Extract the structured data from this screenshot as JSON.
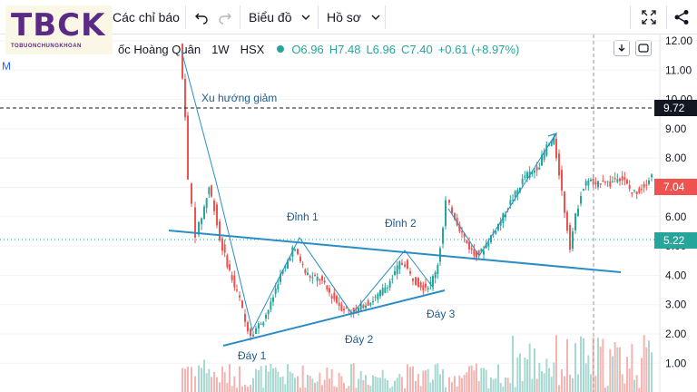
{
  "toolbar": {
    "indicators_label": "Các chỉ báo",
    "chart_label": "Biểu đồ",
    "profile_label": "Hồ sơ"
  },
  "logo": {
    "main": "TBCK",
    "sub": "TOBUONCHUNGKHOAN"
  },
  "legend": {
    "name": "ốc Hoàng Quân",
    "interval": "1W",
    "exchange": "HSX",
    "open": "O6.96",
    "high": "H7.48",
    "low": "L6.96",
    "close": "C7.40",
    "change": "+0.61 (+8.97%)"
  },
  "left_fragment": "M",
  "price_axis": {
    "ticks": [
      "12.00",
      "11.00",
      "10.00",
      "9.00",
      "8.00",
      "7.00",
      "6.00",
      "5.00",
      "4.00",
      "3.00",
      "2.00",
      "1.00"
    ],
    "crosshair_label": "9.72",
    "last_price_label": "7.04",
    "last_price_color": "#ef5350",
    "level_label": "5.22",
    "level_color": "#26a69a"
  },
  "annotations": {
    "downtrend": "Xu hướng giảm",
    "peak1": "Đỉnh 1",
    "peak2": "Đỉnh 2",
    "trough1": "Đáy 1",
    "trough2": "Đáy 2",
    "trough3": "Đáy 3"
  },
  "colors": {
    "up": "#26a69a",
    "down": "#ef5350",
    "line": "#2a8ec4"
  },
  "icons": [
    "undo-icon",
    "redo-icon",
    "chevron-down-icon",
    "fullscreen-icon",
    "share-icon",
    "download-icon",
    "screenshot-icon"
  ]
}
